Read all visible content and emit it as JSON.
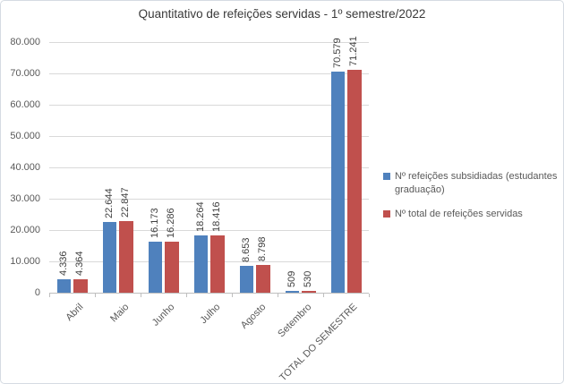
{
  "chart_data": {
    "type": "bar",
    "title": "Quantitativo de refeições servidas - 1º semestre/2022",
    "categories": [
      "Abril",
      "Maio",
      "Junho",
      "Julho",
      "Agosto",
      "Setembro",
      "TOTAL DO SEMESTRE"
    ],
    "series": [
      {
        "name": "Nº refeições subsidiadas (estudantes graduação)",
        "color": "#4F81BD",
        "values": [
          4336,
          22644,
          16173,
          18264,
          8653,
          509,
          70579
        ],
        "labels": [
          "4.336",
          "22.644",
          "16.173",
          "18.264",
          "8.653",
          "509",
          "70.579"
        ]
      },
      {
        "name": "Nº total de refeições servidas",
        "color": "#C0504D",
        "values": [
          4364,
          22847,
          16286,
          18416,
          8798,
          530,
          71241
        ],
        "labels": [
          "4.364",
          "22.847",
          "16.286",
          "18.416",
          "8.798",
          "530",
          "71.241"
        ]
      }
    ],
    "y_axis": {
      "min": 0,
      "max": 80000,
      "step": 10000,
      "tick_labels": [
        "0",
        "10.000",
        "20.000",
        "30.000",
        "40.000",
        "50.000",
        "60.000",
        "70.000",
        "80.000"
      ]
    },
    "x_label_rotation": -45,
    "data_label_rotation": -90,
    "grid": true,
    "legend_position": "right",
    "style": {
      "series_colors": [
        "#4F81BD",
        "#C0504D"
      ],
      "gridline_color": "#D9D9D9",
      "axis_line_color": "#BFBFBF",
      "axis_text_color": "#595959",
      "data_label_color": "#404040",
      "title_color": "#3A3A3A",
      "border_color": "#D5DBE2",
      "background": "#FFFFFF"
    }
  }
}
